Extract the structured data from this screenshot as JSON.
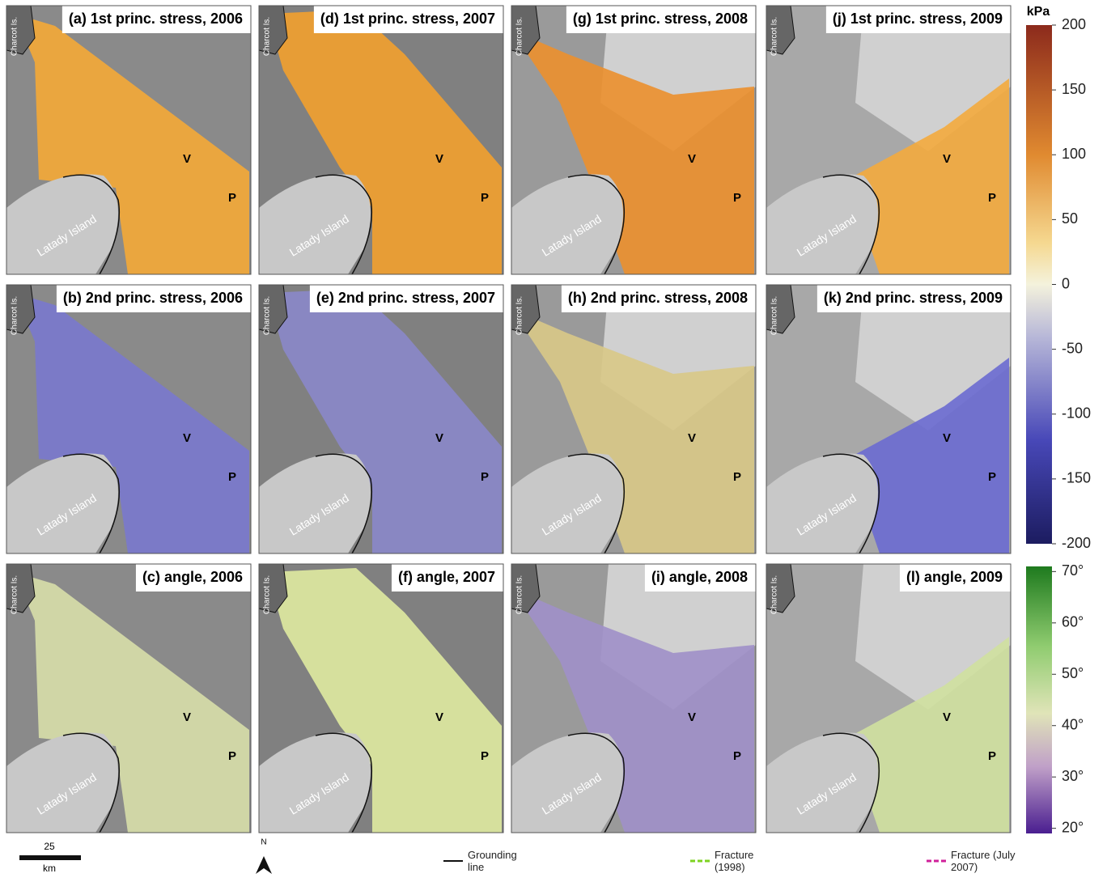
{
  "map_labels": {
    "v": "V",
    "p": "P",
    "island": "Latady Island",
    "charcot": "Charcot Is."
  },
  "panels": [
    {
      "title": "(a) 1st princ. stress, 2006",
      "overlay_color": "#f2a838"
    },
    {
      "title": "(d) 1st princ. stress, 2007",
      "overlay_color": "#f0a030"
    },
    {
      "title": "(g) 1st princ. stress, 2008",
      "overlay_color": "#ea9030"
    },
    {
      "title": "(j) 1st princ. stress, 2009",
      "overlay_color": "#f2aa40"
    },
    {
      "title": "(b) 2nd princ. stress, 2006",
      "overlay_color": "#7a78cc"
    },
    {
      "title": "(e) 2nd princ. stress, 2007",
      "overlay_color": "#8a88c8"
    },
    {
      "title": "(h) 2nd princ. stress, 2008",
      "overlay_color": "#d8c888"
    },
    {
      "title": "(k) 2nd princ. stress, 2009",
      "overlay_color": "#6c6cd0"
    },
    {
      "title": "(c) angle, 2006",
      "overlay_color": "#d6dca8"
    },
    {
      "title": "(f) angle, 2007",
      "overlay_color": "#dde8a0"
    },
    {
      "title": "(i) angle, 2008",
      "overlay_color": "#a090c8"
    },
    {
      "title": "(l) angle, 2009",
      "overlay_color": "#cfe0a0"
    }
  ],
  "stress_colorbar": {
    "unit": "kPa",
    "lim": [
      -200,
      200
    ],
    "ticks": [
      200,
      150,
      100,
      50,
      0,
      -50,
      -100,
      -150,
      -200
    ]
  },
  "angle_colorbar": {
    "lim": [
      19,
      71
    ],
    "ticks": [
      {
        "value": 70,
        "label": "70°"
      },
      {
        "value": 60,
        "label": "60°"
      },
      {
        "value": 50,
        "label": "50°"
      },
      {
        "value": 40,
        "label": "40°"
      },
      {
        "value": 30,
        "label": "30°"
      },
      {
        "value": 20,
        "label": "20°"
      }
    ]
  },
  "scale_bar": {
    "distance": "25",
    "unit": "km"
  },
  "north": "N",
  "legend": {
    "grounding": "Grounding line",
    "fracture_1998": "Fracture (1998)",
    "fracture_2007": "Fracture (July 2007)"
  }
}
